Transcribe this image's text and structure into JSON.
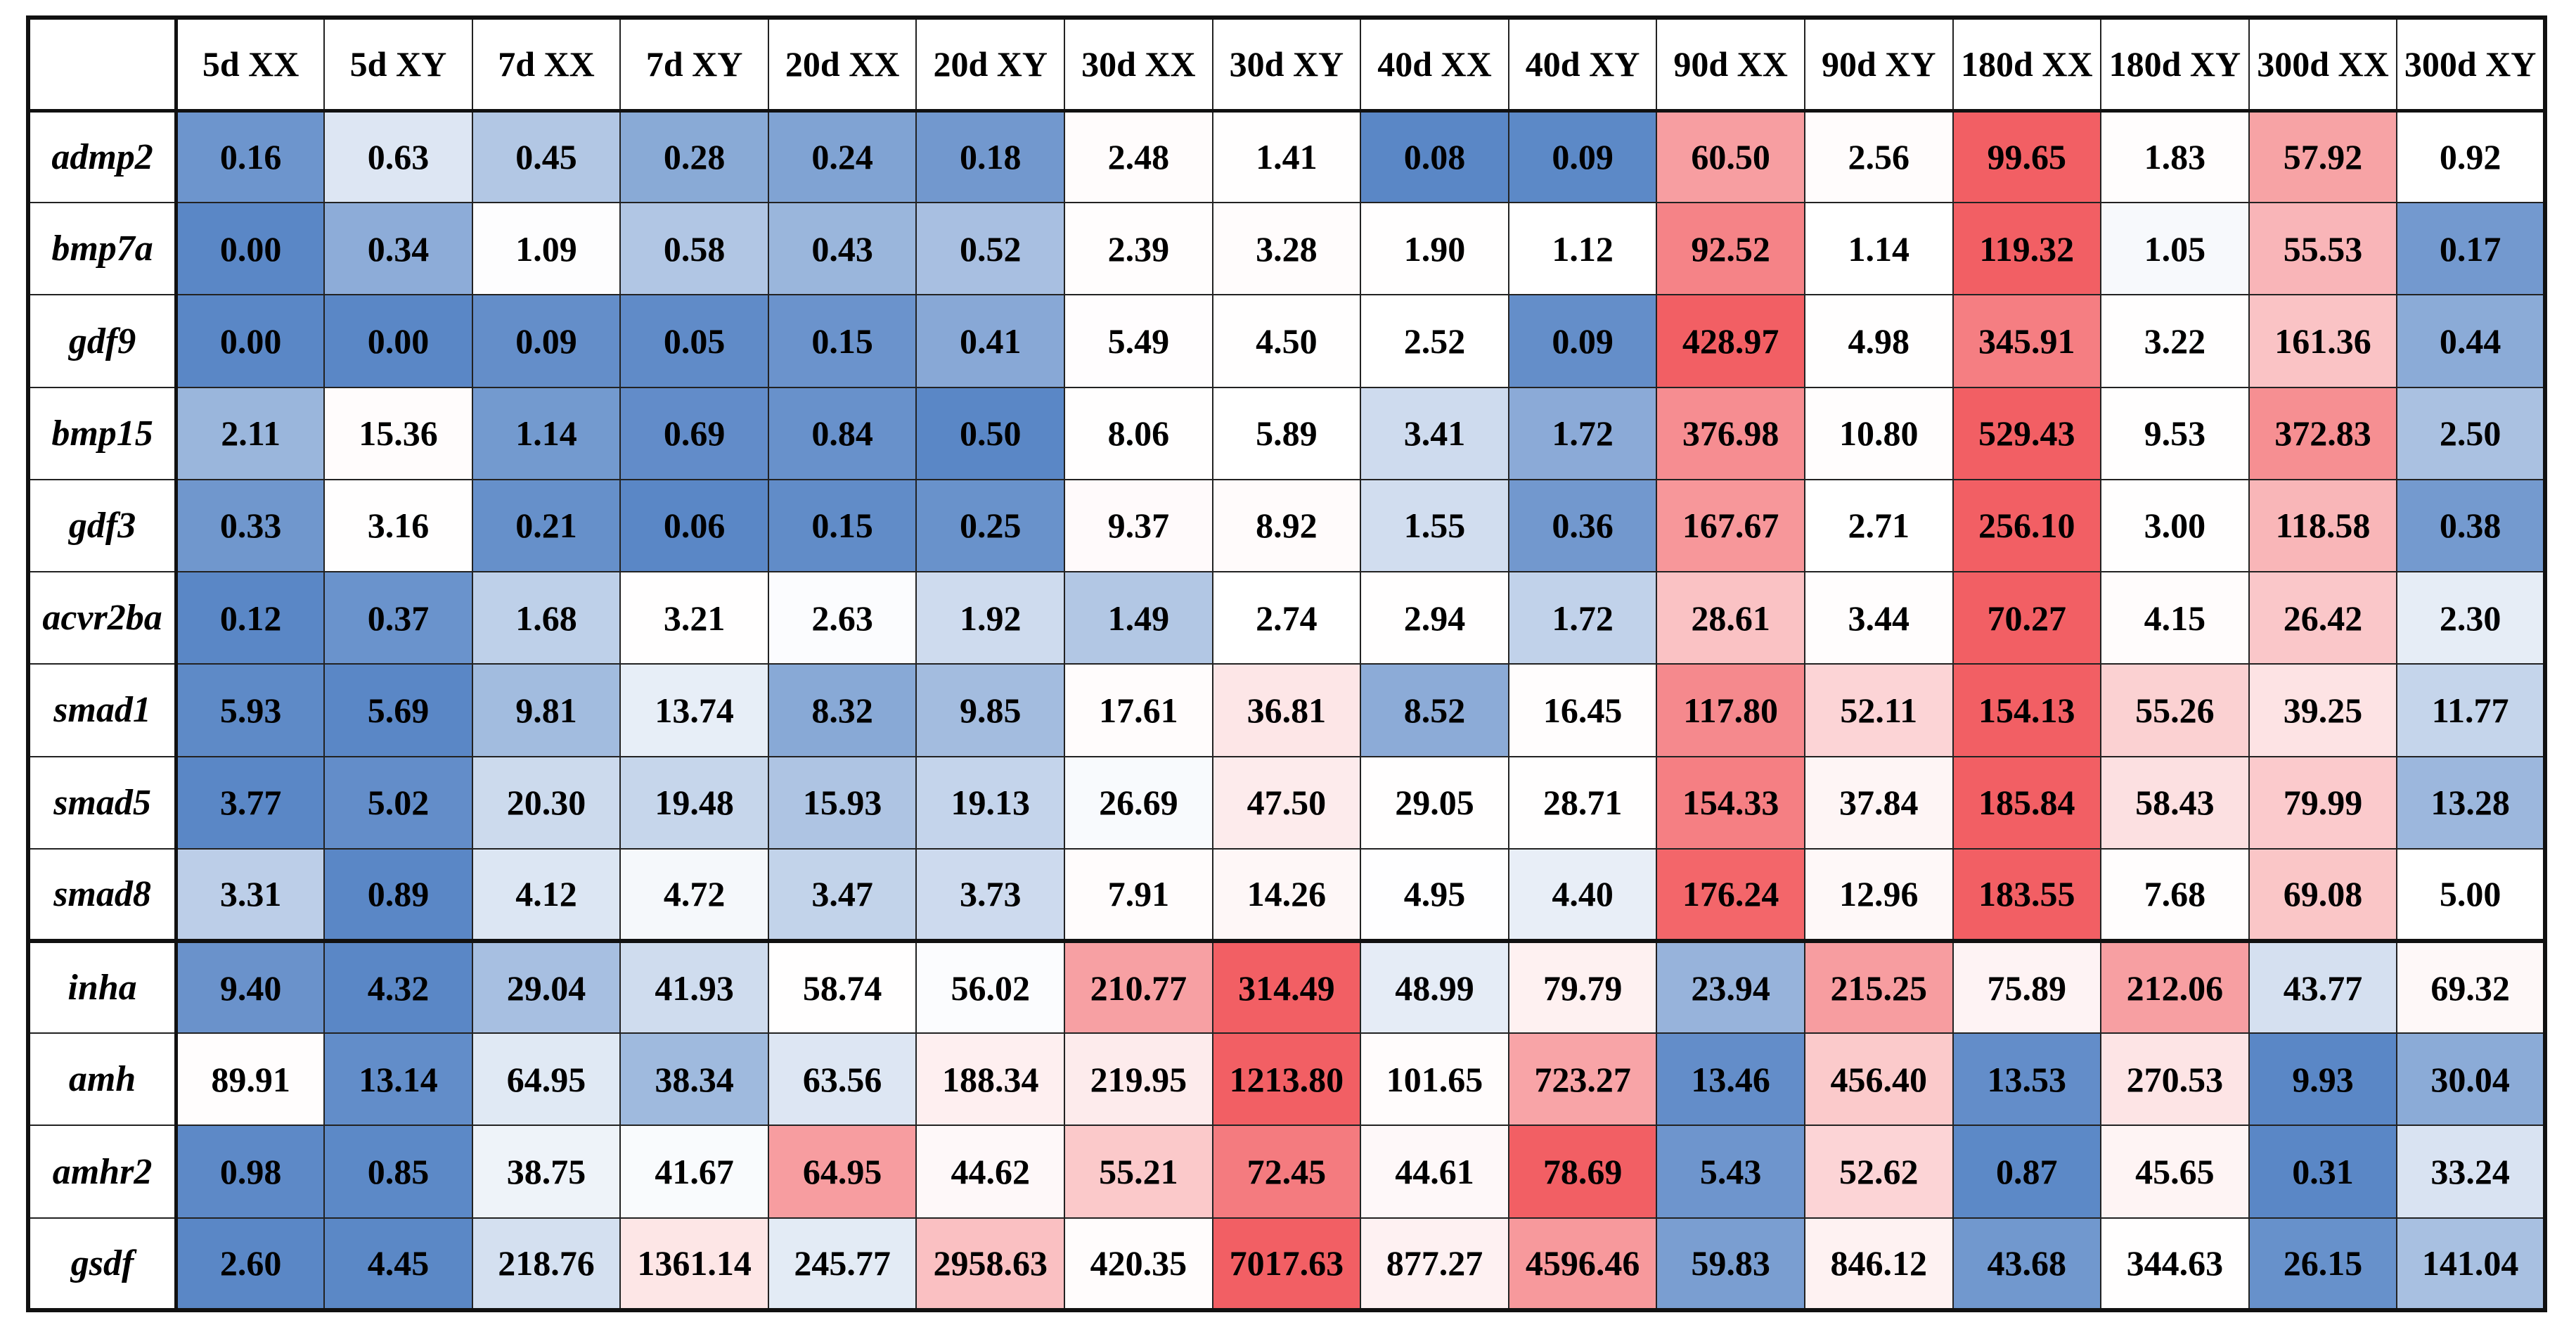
{
  "chart_data": {
    "type": "heatmap",
    "columns": [
      "5d XX",
      "5d XY",
      "7d XX",
      "7d XY",
      "20d XX",
      "20d XY",
      "30d XX",
      "30d XY",
      "40d XX",
      "40d XY",
      "90d XX",
      "90d XY",
      "180d XX",
      "180d XY",
      "300d XX",
      "300d XY"
    ],
    "rows": [
      {
        "gene": "admp2",
        "values": [
          "0.16",
          "0.63",
          "0.45",
          "0.28",
          "0.24",
          "0.18",
          "2.48",
          "1.41",
          "0.08",
          "0.09",
          "60.50",
          "2.56",
          "99.65",
          "1.83",
          "57.92",
          "0.92"
        ]
      },
      {
        "gene": "bmp7a",
        "values": [
          "0.00",
          "0.34",
          "1.09",
          "0.58",
          "0.43",
          "0.52",
          "2.39",
          "3.28",
          "1.90",
          "1.12",
          "92.52",
          "1.14",
          "119.32",
          "1.05",
          "55.53",
          "0.17"
        ]
      },
      {
        "gene": "gdf9",
        "values": [
          "0.00",
          "0.00",
          "0.09",
          "0.05",
          "0.15",
          "0.41",
          "5.49",
          "4.50",
          "2.52",
          "0.09",
          "428.97",
          "4.98",
          "345.91",
          "3.22",
          "161.36",
          "0.44"
        ]
      },
      {
        "gene": "bmp15",
        "values": [
          "2.11",
          "15.36",
          "1.14",
          "0.69",
          "0.84",
          "0.50",
          "8.06",
          "5.89",
          "3.41",
          "1.72",
          "376.98",
          "10.80",
          "529.43",
          "9.53",
          "372.83",
          "2.50"
        ]
      },
      {
        "gene": "gdf3",
        "values": [
          "0.33",
          "3.16",
          "0.21",
          "0.06",
          "0.15",
          "0.25",
          "9.37",
          "8.92",
          "1.55",
          "0.36",
          "167.67",
          "2.71",
          "256.10",
          "3.00",
          "118.58",
          "0.38"
        ]
      },
      {
        "gene": "acvr2ba",
        "values": [
          "0.12",
          "0.37",
          "1.68",
          "3.21",
          "2.63",
          "1.92",
          "1.49",
          "2.74",
          "2.94",
          "1.72",
          "28.61",
          "3.44",
          "70.27",
          "4.15",
          "26.42",
          "2.30"
        ]
      },
      {
        "gene": "smad1",
        "values": [
          "5.93",
          "5.69",
          "9.81",
          "13.74",
          "8.32",
          "9.85",
          "17.61",
          "36.81",
          "8.52",
          "16.45",
          "117.80",
          "52.11",
          "154.13",
          "55.26",
          "39.25",
          "11.77"
        ]
      },
      {
        "gene": "smad5",
        "values": [
          "3.77",
          "5.02",
          "20.30",
          "19.48",
          "15.93",
          "19.13",
          "26.69",
          "47.50",
          "29.05",
          "28.71",
          "154.33",
          "37.84",
          "185.84",
          "58.43",
          "79.99",
          "13.28"
        ]
      },
      {
        "gene": "smad8",
        "values": [
          "3.31",
          "0.89",
          "4.12",
          "4.72",
          "3.47",
          "3.73",
          "7.91",
          "14.26",
          "4.95",
          "4.40",
          "176.24",
          "12.96",
          "183.55",
          "7.68",
          "69.08",
          "5.00"
        ]
      },
      {
        "gene": "inha",
        "values": [
          "9.40",
          "4.32",
          "29.04",
          "41.93",
          "58.74",
          "56.02",
          "210.77",
          "314.49",
          "48.99",
          "79.79",
          "23.94",
          "215.25",
          "75.89",
          "212.06",
          "43.77",
          "69.32"
        ]
      },
      {
        "gene": "amh",
        "values": [
          "89.91",
          "13.14",
          "64.95",
          "38.34",
          "63.56",
          "188.34",
          "219.95",
          "1213.80",
          "101.65",
          "723.27",
          "13.46",
          "456.40",
          "13.53",
          "270.53",
          "9.93",
          "30.04"
        ]
      },
      {
        "gene": "amhr2",
        "values": [
          "0.98",
          "0.85",
          "38.75",
          "41.67",
          "64.95",
          "44.62",
          "55.21",
          "72.45",
          "44.61",
          "78.69",
          "5.43",
          "52.62",
          "0.87",
          "45.65",
          "0.31",
          "33.24"
        ]
      },
      {
        "gene": "gsdf",
        "values": [
          "2.60",
          "4.45",
          "218.76",
          "1361.14",
          "245.77",
          "2958.63",
          "420.35",
          "7017.63",
          "877.27",
          "4596.46",
          "59.83",
          "846.12",
          "43.68",
          "344.63",
          "26.15",
          "141.04"
        ]
      }
    ],
    "color_scale": {
      "low": "#5a87c6",
      "mid": "#ffffff",
      "high": "#f25f64"
    },
    "scale_per_row": true
  }
}
